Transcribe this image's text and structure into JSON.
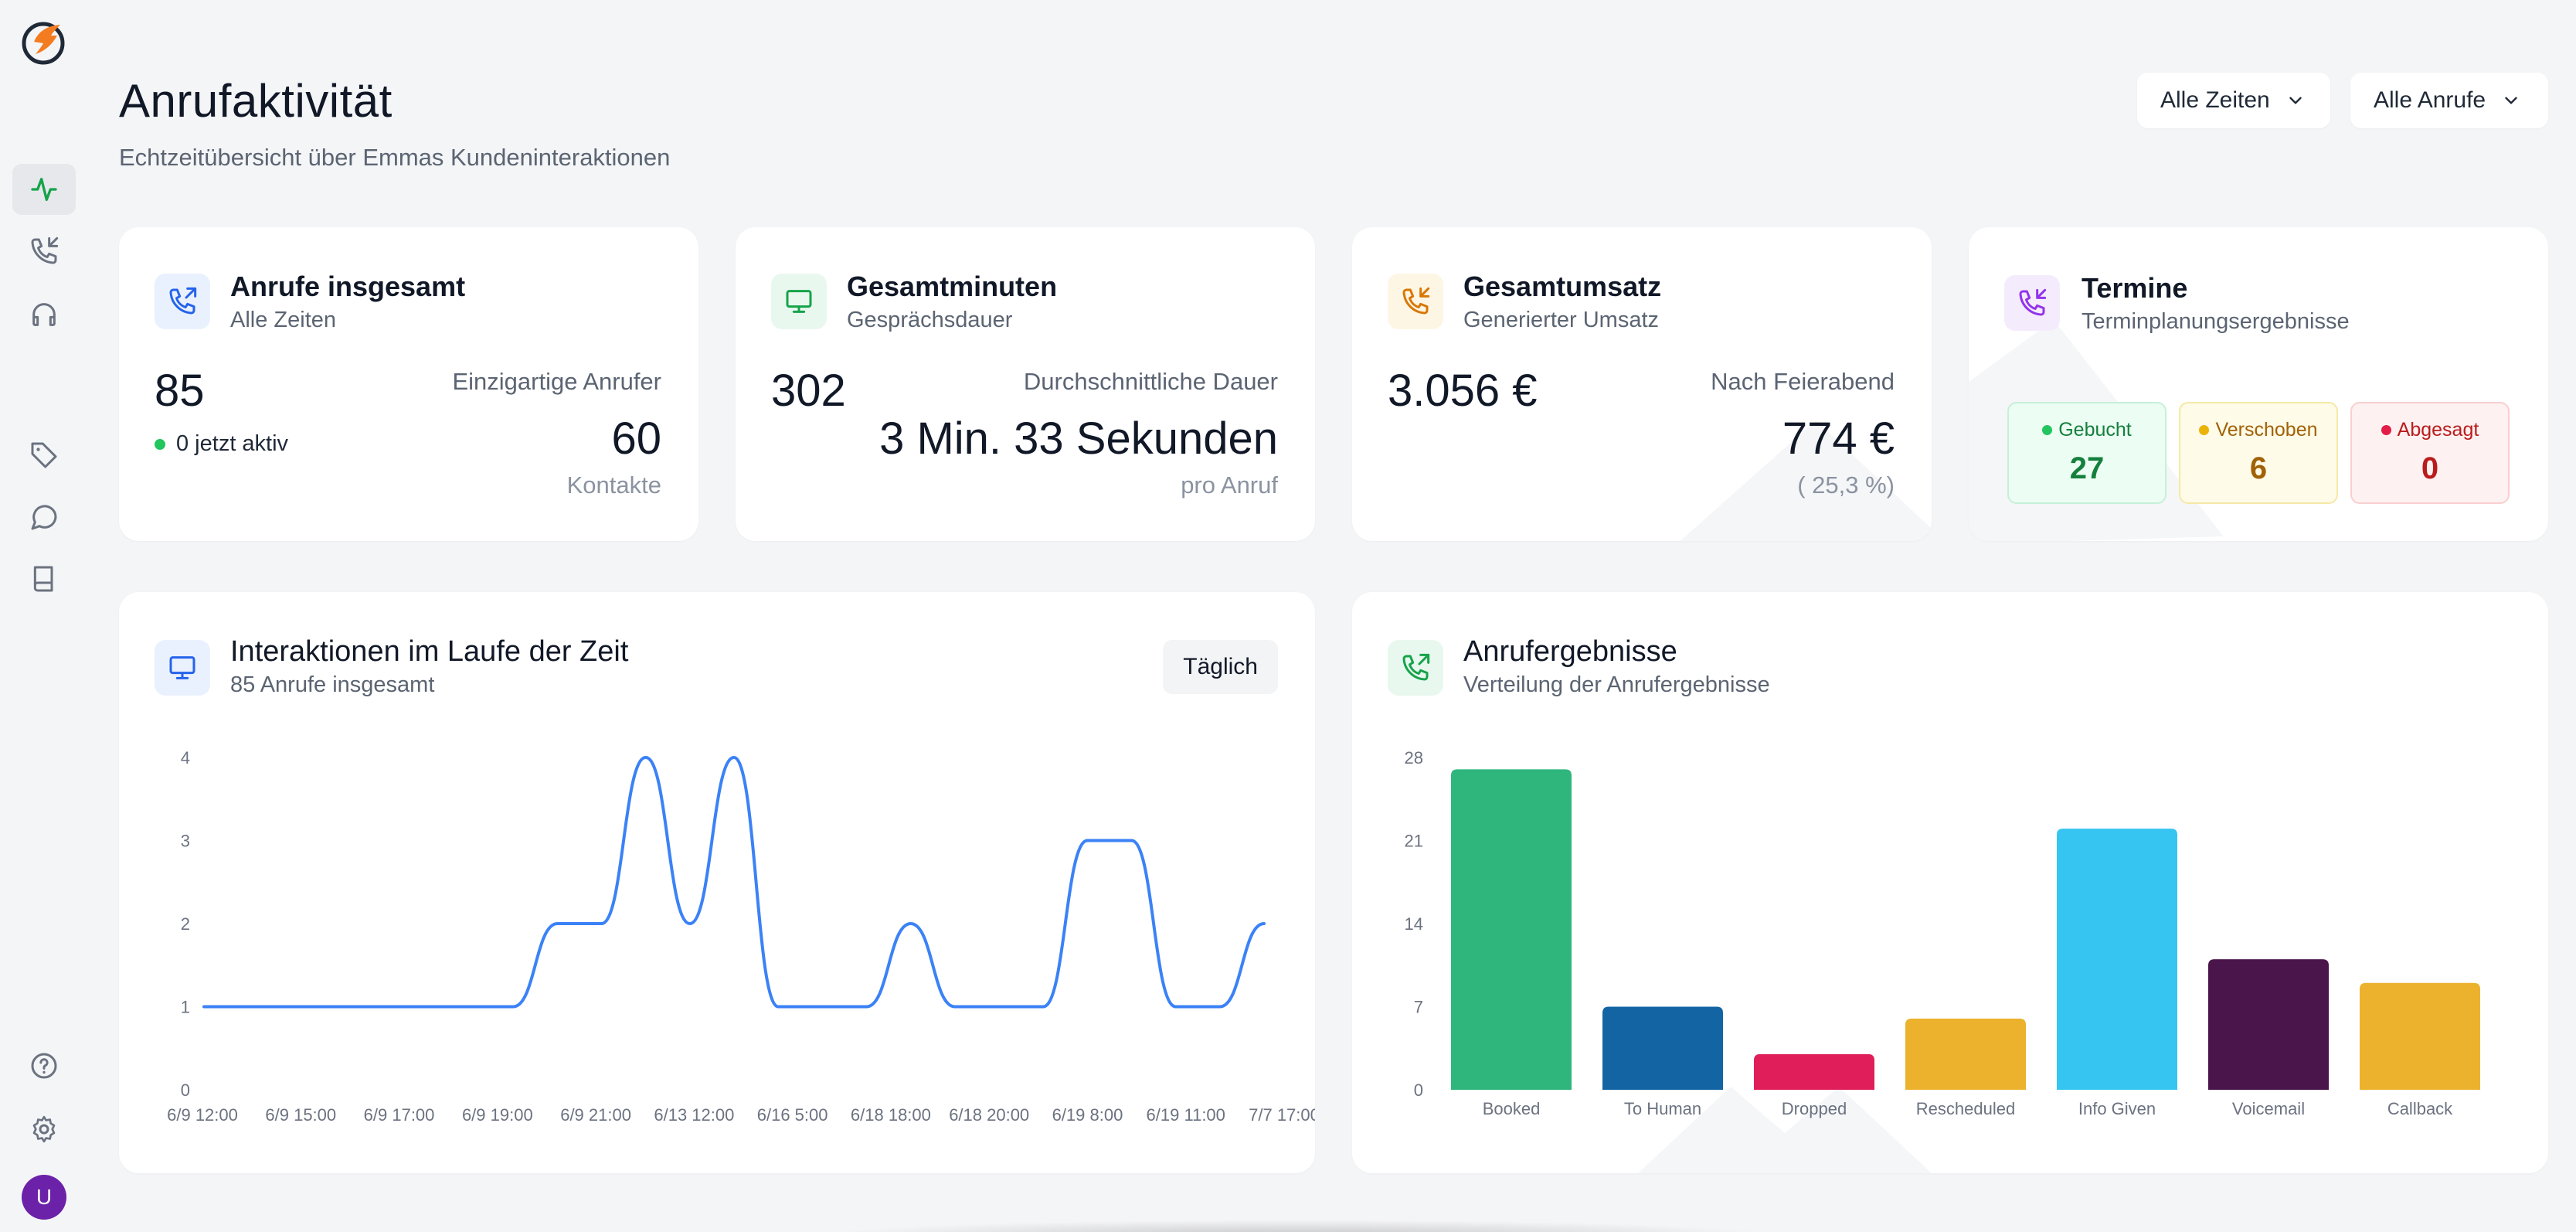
{
  "header": {
    "title": "Anrufaktivität",
    "subtitle": "Echtzeitübersicht über Emmas Kundeninteraktionen",
    "filter_time": "Alle Zeiten",
    "filter_calls": "Alle Anrufe"
  },
  "sidebar": {
    "items": [
      "activity-icon",
      "phone-incoming-icon",
      "headset-icon",
      "tag-icon",
      "chat-icon",
      "book-icon"
    ],
    "bottom_items": [
      "help-icon",
      "settings-icon"
    ],
    "avatar_letter": "U"
  },
  "stats": {
    "calls": {
      "title": "Anrufe insgesamt",
      "subtitle": "Alle Zeiten",
      "value": "85",
      "active": "0 jetzt aktiv",
      "unique_label": "Einzigartige Anrufer",
      "unique_value": "60",
      "unique_unit": "Kontakte"
    },
    "minutes": {
      "title": "Gesamtminuten",
      "subtitle": "Gesprächsdauer",
      "value": "302",
      "avg_label": "Durchschnittliche Dauer",
      "avg_value": "3 Min. 33 Sekunden",
      "avg_unit": "pro Anruf"
    },
    "revenue": {
      "title": "Gesamtumsatz",
      "subtitle": "Generierter Umsatz",
      "value": "3.056 €",
      "after_label": "Nach Feierabend",
      "after_value": "774 €",
      "after_pct": "( 25,3 %)"
    },
    "appointments": {
      "title": "Termine",
      "subtitle": "Terminplanungsergebnisse",
      "booked_label": "Gebucht",
      "booked_value": "27",
      "moved_label": "Verschoben",
      "moved_value": "6",
      "cancelled_label": "Abgesagt",
      "cancelled_value": "0"
    }
  },
  "interactions": {
    "title": "Interaktionen im Laufe der Zeit",
    "subtitle": "85 Anrufe insgesamt",
    "tab": "Täglich"
  },
  "outcomes": {
    "title": "Anrufergebnisse",
    "subtitle": "Verteilung der Anrufergebnisse"
  },
  "chart_data": [
    {
      "type": "line",
      "title": "Interaktionen im Laufe der Zeit",
      "x_tick_labels": [
        "6/9 12:00",
        "6/9 15:00",
        "6/9 17:00",
        "6/9 19:00",
        "6/9 21:00",
        "6/13 12:00",
        "6/16 5:00",
        "6/18 18:00",
        "6/18 20:00",
        "6/19 8:00",
        "6/19 11:00",
        "7/7 17:00"
      ],
      "y_ticks": [
        0,
        1,
        2,
        3,
        4
      ],
      "ylim": [
        0,
        4
      ],
      "series": [
        {
          "color": "#3b82f6",
          "values": [
            1,
            1,
            1,
            1,
            1,
            1,
            1,
            1,
            2,
            2,
            4,
            2,
            4,
            1,
            1,
            1,
            2,
            1,
            1,
            1,
            3,
            3,
            1,
            1,
            2
          ]
        }
      ],
      "grid": false
    },
    {
      "type": "bar",
      "title": "Anrufergebnisse",
      "categories": [
        "Booked",
        "To Human",
        "Dropped",
        "Rescheduled",
        "Info Given",
        "Voicemail",
        "Callback"
      ],
      "values": [
        27,
        7,
        3,
        6,
        22,
        11,
        9
      ],
      "colors": [
        "#2eb67d",
        "#1264a3",
        "#e01e5a",
        "#ecb22e",
        "#36c5f0",
        "#4a154b",
        "#ecb22e"
      ],
      "y_ticks": [
        0,
        7,
        14,
        21,
        28
      ],
      "ylim": [
        0,
        28
      ],
      "grid": false
    }
  ]
}
